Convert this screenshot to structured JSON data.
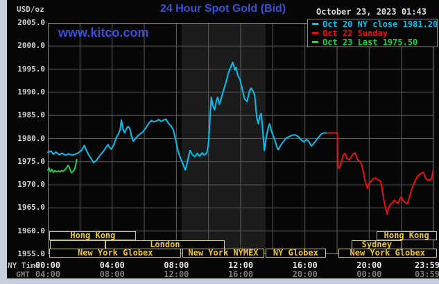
{
  "header": {
    "units": "USD/oz",
    "title": "24 Hour Spot Gold (Bid)",
    "datetime": "October 23, 2023 01:43",
    "watermark": "www.kitco.com",
    "title_color": "#3a4fd9"
  },
  "legend": {
    "entries": [
      {
        "label": "Oct 20 NY close 1981.20",
        "color": "#00c2f2"
      },
      {
        "label": "Oct 22 Sunday",
        "color": "#ee0e0e"
      },
      {
        "label": "Oct 23 Last 1975.50",
        "color": "#16d545"
      }
    ]
  },
  "axes": {
    "ny_time_label": "NY Time",
    "gmt_label": "GMT"
  },
  "chart_data": {
    "type": "line",
    "title": "24 Hour Spot Gold (Bid)",
    "ylabel": "USD/oz",
    "ylim": [
      1955,
      2005
    ],
    "xlim_hours_ny": [
      0,
      24
    ],
    "grid": true,
    "grid_color": "#5c5c5c",
    "border_color": "#8a8a8a",
    "band": {
      "start_h": 8.33,
      "end_h": 13.55,
      "color": "#1b1b1b"
    },
    "y_ticks": [
      "2005.0",
      "2000.0",
      "1995.0",
      "1990.0",
      "1985.0",
      "1980.0",
      "1975.0",
      "1970.0",
      "1965.0",
      "1960.0",
      "1955.0"
    ],
    "x_ticks": [
      {
        "h": 0,
        "ny": "00:00",
        "gmt": "04:00"
      },
      {
        "h": 4,
        "ny": "04:00",
        "gmt": "08:00"
      },
      {
        "h": 8,
        "ny": "08:00",
        "gmt": "12:00"
      },
      {
        "h": 12,
        "ny": "12:00",
        "gmt": "16:00"
      },
      {
        "h": 16,
        "ny": "16:00",
        "gmt": "20:00"
      },
      {
        "h": 20,
        "ny": "20:00",
        "gmt": "00:00"
      },
      {
        "h": 23.983,
        "ny": "23:59",
        "gmt": "03:59"
      }
    ],
    "series": [
      {
        "name": "Oct 20 NY close 1981.20",
        "color": "#00c2f2",
        "points": [
          [
            0.0,
            1977.0
          ],
          [
            0.2,
            1977.3
          ],
          [
            0.35,
            1976.6
          ],
          [
            0.5,
            1977.1
          ],
          [
            0.7,
            1976.5
          ],
          [
            0.9,
            1976.8
          ],
          [
            1.1,
            1976.4
          ],
          [
            1.3,
            1976.7
          ],
          [
            1.5,
            1976.4
          ],
          [
            1.7,
            1976.6
          ],
          [
            1.9,
            1976.9
          ],
          [
            2.1,
            1977.5
          ],
          [
            2.27,
            1978.5
          ],
          [
            2.4,
            1977.4
          ],
          [
            2.55,
            1976.4
          ],
          [
            2.7,
            1975.6
          ],
          [
            2.85,
            1974.8
          ],
          [
            3.0,
            1975.2
          ],
          [
            3.15,
            1975.9
          ],
          [
            3.3,
            1976.6
          ],
          [
            3.45,
            1977.2
          ],
          [
            3.6,
            1978.0
          ],
          [
            3.75,
            1978.7
          ],
          [
            3.85,
            1978.0
          ],
          [
            3.95,
            1977.7
          ],
          [
            4.1,
            1978.6
          ],
          [
            4.25,
            1980.2
          ],
          [
            4.4,
            1981.0
          ],
          [
            4.5,
            1982.0
          ],
          [
            4.58,
            1984.0
          ],
          [
            4.68,
            1982.0
          ],
          [
            4.78,
            1981.2
          ],
          [
            4.9,
            1982.2
          ],
          [
            5.0,
            1982.6
          ],
          [
            5.1,
            1982.2
          ],
          [
            5.2,
            1980.6
          ],
          [
            5.32,
            1979.4
          ],
          [
            5.45,
            1980.0
          ],
          [
            5.6,
            1980.6
          ],
          [
            5.75,
            1981.0
          ],
          [
            5.9,
            1981.4
          ],
          [
            6.1,
            1982.3
          ],
          [
            6.3,
            1983.4
          ],
          [
            6.45,
            1983.9
          ],
          [
            6.6,
            1983.6
          ],
          [
            6.75,
            1983.8
          ],
          [
            6.9,
            1984.1
          ],
          [
            7.05,
            1983.7
          ],
          [
            7.2,
            1984.0
          ],
          [
            7.35,
            1984.2
          ],
          [
            7.5,
            1983.3
          ],
          [
            7.65,
            1982.8
          ],
          [
            7.8,
            1981.9
          ],
          [
            7.95,
            1979.8
          ],
          [
            8.1,
            1977.3
          ],
          [
            8.25,
            1975.8
          ],
          [
            8.4,
            1974.6
          ],
          [
            8.55,
            1973.2
          ],
          [
            8.65,
            1974.4
          ],
          [
            8.75,
            1976.0
          ],
          [
            8.85,
            1977.4
          ],
          [
            9.0,
            1976.5
          ],
          [
            9.15,
            1976.1
          ],
          [
            9.3,
            1976.8
          ],
          [
            9.45,
            1976.2
          ],
          [
            9.6,
            1976.9
          ],
          [
            9.75,
            1976.4
          ],
          [
            9.9,
            1977.0
          ],
          [
            10.0,
            1979.0
          ],
          [
            10.1,
            1985.0
          ],
          [
            10.17,
            1988.9
          ],
          [
            10.28,
            1987.0
          ],
          [
            10.38,
            1986.2
          ],
          [
            10.5,
            1988.4
          ],
          [
            10.57,
            1988.9
          ],
          [
            10.68,
            1987.4
          ],
          [
            10.8,
            1988.8
          ],
          [
            10.95,
            1990.6
          ],
          [
            11.1,
            1992.3
          ],
          [
            11.25,
            1994.3
          ],
          [
            11.4,
            1995.6
          ],
          [
            11.5,
            1996.5
          ],
          [
            11.58,
            1995.6
          ],
          [
            11.65,
            1994.8
          ],
          [
            11.72,
            1995.4
          ],
          [
            11.82,
            1993.6
          ],
          [
            11.95,
            1992.9
          ],
          [
            12.1,
            1990.6
          ],
          [
            12.25,
            1988.5
          ],
          [
            12.4,
            1988.0
          ],
          [
            12.55,
            1990.3
          ],
          [
            12.65,
            1990.9
          ],
          [
            12.78,
            1990.2
          ],
          [
            12.88,
            1989.2
          ],
          [
            13.0,
            1984.5
          ],
          [
            13.1,
            1983.2
          ],
          [
            13.2,
            1985.0
          ],
          [
            13.28,
            1985.4
          ],
          [
            13.38,
            1981.5
          ],
          [
            13.47,
            1977.4
          ],
          [
            13.6,
            1980.4
          ],
          [
            13.72,
            1982.4
          ],
          [
            13.8,
            1983.2
          ],
          [
            13.95,
            1981.2
          ],
          [
            14.1,
            1980.0
          ],
          [
            14.25,
            1978.2
          ],
          [
            14.35,
            1977.6
          ],
          [
            14.5,
            1978.6
          ],
          [
            14.65,
            1979.3
          ],
          [
            14.8,
            1980.0
          ],
          [
            15.0,
            1980.4
          ],
          [
            15.2,
            1980.7
          ],
          [
            15.4,
            1980.8
          ],
          [
            15.6,
            1980.4
          ],
          [
            15.8,
            1979.6
          ],
          [
            15.95,
            1979.3
          ],
          [
            16.1,
            1979.8
          ],
          [
            16.25,
            1979.3
          ],
          [
            16.4,
            1978.4
          ],
          [
            16.55,
            1978.9
          ],
          [
            16.7,
            1979.6
          ],
          [
            16.85,
            1980.3
          ],
          [
            17.0,
            1980.9
          ],
          [
            17.15,
            1981.2
          ],
          [
            17.38,
            1981.2
          ]
        ]
      },
      {
        "name": "Oct 22 Sunday",
        "color": "#ee0e0e",
        "points": [
          [
            17.38,
            1981.2
          ],
          [
            18.02,
            1981.2
          ],
          [
            18.05,
            1974.2
          ],
          [
            18.12,
            1973.5
          ],
          [
            18.25,
            1974.6
          ],
          [
            18.38,
            1976.4
          ],
          [
            18.5,
            1976.8
          ],
          [
            18.62,
            1975.6
          ],
          [
            18.75,
            1975.4
          ],
          [
            18.88,
            1976.0
          ],
          [
            19.0,
            1976.7
          ],
          [
            19.12,
            1976.9
          ],
          [
            19.3,
            1975.3
          ],
          [
            19.45,
            1975.0
          ],
          [
            19.58,
            1973.8
          ],
          [
            19.7,
            1971.5
          ],
          [
            19.82,
            1970.0
          ],
          [
            19.9,
            1969.2
          ],
          [
            20.0,
            1970.3
          ],
          [
            20.12,
            1970.8
          ],
          [
            20.25,
            1971.3
          ],
          [
            20.38,
            1971.5
          ],
          [
            20.5,
            1971.2
          ],
          [
            20.62,
            1971.0
          ],
          [
            20.72,
            1970.7
          ],
          [
            20.85,
            1968.0
          ],
          [
            20.95,
            1966.0
          ],
          [
            21.05,
            1964.6
          ],
          [
            21.12,
            1963.7
          ],
          [
            21.2,
            1964.9
          ],
          [
            21.3,
            1965.7
          ],
          [
            21.45,
            1966.1
          ],
          [
            21.58,
            1966.7
          ],
          [
            21.7,
            1966.2
          ],
          [
            21.8,
            1966.0
          ],
          [
            21.92,
            1967.0
          ],
          [
            22.0,
            1967.4
          ],
          [
            22.12,
            1966.5
          ],
          [
            22.25,
            1966.1
          ],
          [
            22.38,
            1965.9
          ],
          [
            22.5,
            1967.3
          ],
          [
            22.62,
            1968.8
          ],
          [
            22.75,
            1969.9
          ],
          [
            22.88,
            1971.0
          ],
          [
            23.0,
            1971.8
          ],
          [
            23.12,
            1972.2
          ],
          [
            23.25,
            1972.5
          ],
          [
            23.38,
            1972.7
          ],
          [
            23.5,
            1971.5
          ],
          [
            23.62,
            1971.0
          ],
          [
            23.75,
            1971.1
          ],
          [
            23.85,
            1971.0
          ],
          [
            23.92,
            1972.0
          ],
          [
            23.98,
            1973.2
          ]
        ]
      },
      {
        "name": "Oct 23 Last 1975.50",
        "color": "#16d545",
        "points": [
          [
            0.0,
            1973.2
          ],
          [
            0.08,
            1973.6
          ],
          [
            0.15,
            1972.8
          ],
          [
            0.25,
            1973.3
          ],
          [
            0.35,
            1972.7
          ],
          [
            0.45,
            1973.1
          ],
          [
            0.55,
            1972.8
          ],
          [
            0.65,
            1973.0
          ],
          [
            0.75,
            1972.8
          ],
          [
            0.85,
            1973.1
          ],
          [
            0.95,
            1972.9
          ],
          [
            1.05,
            1973.2
          ],
          [
            1.15,
            1973.6
          ],
          [
            1.25,
            1974.2
          ],
          [
            1.32,
            1973.9
          ],
          [
            1.4,
            1973.1
          ],
          [
            1.48,
            1972.6
          ],
          [
            1.56,
            1972.9
          ],
          [
            1.64,
            1973.2
          ],
          [
            1.72,
            1974.0
          ],
          [
            1.8,
            1975.5
          ]
        ]
      }
    ]
  },
  "sessions": {
    "border_color": "#c9c583",
    "text_color": "#f0c636",
    "boxes": [
      {
        "row": 0,
        "start_h": 0.1,
        "end_h": 5.5,
        "label": "Hong Kong"
      },
      {
        "row": 0,
        "start_h": 20.45,
        "end_h": 24.2,
        "label": "Hong Kong"
      },
      {
        "row": 1,
        "start_h": 0.13,
        "end_h": 3.58,
        "label": ""
      },
      {
        "row": 1,
        "start_h": 3.58,
        "end_h": 11.0,
        "label": "London"
      },
      {
        "row": 1,
        "start_h": 18.9,
        "end_h": 22.05,
        "label": "Sydney"
      },
      {
        "row": 2,
        "start_h": 0.1,
        "end_h": 8.3,
        "label": "New York Globex"
      },
      {
        "row": 2,
        "start_h": 8.37,
        "end_h": 13.47,
        "label": "New York NYMEX"
      },
      {
        "row": 2,
        "start_h": 13.55,
        "end_h": 17.3,
        "label": "NY Globex"
      },
      {
        "row": 2,
        "start_h": 18.08,
        "end_h": 24.2,
        "label": "New York Globex"
      }
    ]
  }
}
